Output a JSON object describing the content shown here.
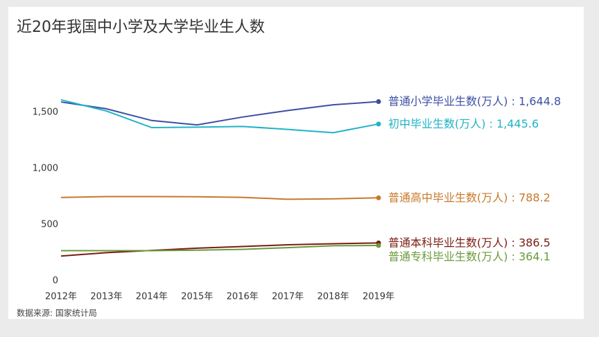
{
  "chart_data": {
    "type": "line",
    "title": "近20年我国中小学及大学毕业生人数",
    "source": "数据来源: 国家统计局",
    "label_separator": " : ",
    "categories": [
      "2012年",
      "2013年",
      "2014年",
      "2015年",
      "2016年",
      "2017年",
      "2018年",
      "2019年"
    ],
    "ylim": [
      0,
      1800
    ],
    "yticks": [
      0,
      500,
      {
        "value": 1000,
        "label": "1,000"
      },
      {
        "value": 1500,
        "label": "1,500"
      }
    ],
    "grid": false,
    "series": [
      {
        "name": "普通小学毕业生数(万人)",
        "color": "#3d4ea3",
        "values": [
          1641.6,
          1581.1,
          1476.6,
          1437.3,
          1507.4,
          1565.9,
          1616.5,
          1644.8
        ],
        "value_labels": [
          null,
          null,
          null,
          null,
          null,
          null,
          null,
          "1,644.8"
        ]
      },
      {
        "name": "初中毕业生数(万人)",
        "color": "#1fb3c6",
        "values": [
          1660.8,
          1561.5,
          1413.5,
          1417.6,
          1423.9,
          1397.5,
          1367.8,
          1445.6
        ],
        "value_labels": [
          null,
          null,
          null,
          null,
          null,
          null,
          null,
          "1,445.6"
        ]
      },
      {
        "name": "普通高中毕业生数(万人)",
        "color": "#c8782a",
        "values": [
          791.5,
          799.0,
          799.6,
          797.7,
          792.4,
          775.7,
          779.2,
          788.2
        ],
        "value_labels": [
          null,
          null,
          null,
          null,
          null,
          null,
          null,
          "788.2"
        ]
      },
      {
        "name": "普通本科毕业生数(万人)",
        "color": "#7a1c12",
        "values": [
          270.0,
          300.0,
          320.0,
          340.0,
          355.0,
          370.0,
          380.0,
          386.5
        ],
        "value_labels": [
          null,
          null,
          null,
          null,
          null,
          null,
          null,
          "386.5"
        ]
      },
      {
        "name": "普通专科毕业生数(万人)",
        "color": "#6b9a3a",
        "values": [
          318.0,
          318.0,
          318.0,
          322.3,
          329.8,
          345.0,
          362.0,
          364.1
        ],
        "value_labels": [
          null,
          null,
          null,
          null,
          null,
          null,
          null,
          "364.1"
        ]
      }
    ]
  }
}
